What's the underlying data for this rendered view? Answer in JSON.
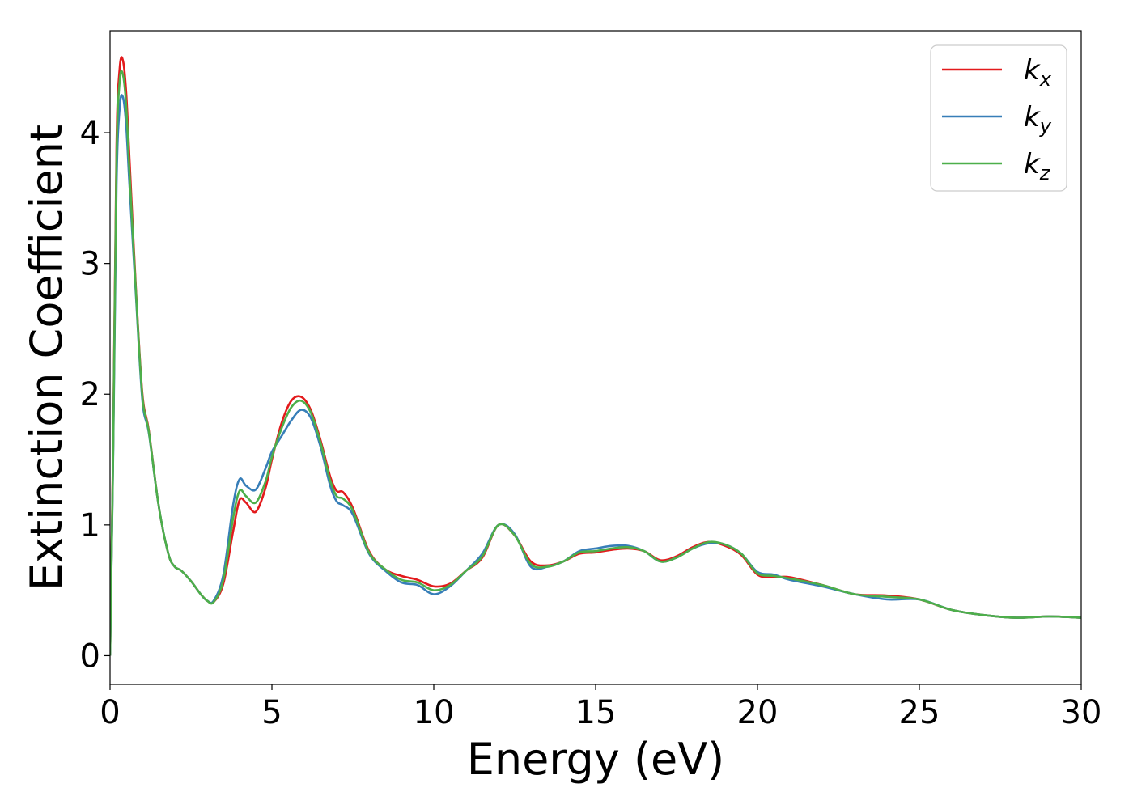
{
  "chart_data": {
    "type": "line",
    "xlabel": "Energy (eV)",
    "ylabel": "Extinction Coefficient",
    "xlim": [
      0,
      30
    ],
    "ylim": [
      -0.22,
      4.78
    ],
    "xticks": [
      0,
      5,
      10,
      15,
      20,
      25,
      30
    ],
    "yticks": [
      0,
      1,
      2,
      3,
      4
    ],
    "grid": false,
    "legend_placement": "top-right",
    "x": [
      0,
      0.1,
      0.2,
      0.3,
      0.4,
      0.5,
      0.6,
      0.8,
      1.0,
      1.2,
      1.5,
      1.8,
      2.0,
      2.2,
      2.5,
      2.8,
      3.0,
      3.2,
      3.5,
      3.8,
      4.0,
      4.2,
      4.5,
      4.8,
      5.0,
      5.3,
      5.6,
      5.9,
      6.2,
      6.5,
      6.8,
      7.0,
      7.2,
      7.5,
      8.0,
      8.5,
      9.0,
      9.5,
      10.0,
      10.5,
      11.0,
      11.5,
      12.0,
      12.5,
      13.0,
      13.5,
      14.0,
      14.5,
      15.0,
      15.5,
      16.0,
      16.5,
      17.0,
      17.5,
      18.0,
      18.5,
      19.0,
      19.5,
      20.0,
      20.5,
      21.0,
      22.0,
      23.0,
      24.0,
      25.0,
      26.0,
      27.0,
      28.0,
      29.0,
      30.0
    ],
    "series": [
      {
        "name": "k",
        "name_sub": "x",
        "color": "#e31a1c",
        "values": [
          0,
          1.7,
          3.9,
          4.5,
          4.55,
          4.3,
          3.8,
          2.8,
          2.0,
          1.72,
          1.15,
          0.78,
          0.68,
          0.65,
          0.57,
          0.47,
          0.42,
          0.41,
          0.55,
          0.95,
          1.19,
          1.17,
          1.1,
          1.28,
          1.5,
          1.78,
          1.95,
          1.98,
          1.88,
          1.65,
          1.37,
          1.26,
          1.25,
          1.13,
          0.8,
          0.66,
          0.61,
          0.58,
          0.53,
          0.55,
          0.65,
          0.75,
          1.0,
          0.92,
          0.72,
          0.69,
          0.72,
          0.78,
          0.79,
          0.81,
          0.82,
          0.8,
          0.73,
          0.76,
          0.83,
          0.87,
          0.84,
          0.77,
          0.62,
          0.6,
          0.6,
          0.54,
          0.47,
          0.46,
          0.43,
          0.35,
          0.31,
          0.29,
          0.3,
          0.29
        ]
      },
      {
        "name": "k",
        "name_sub": "y",
        "color": "#377eb8",
        "values": [
          0,
          1.6,
          3.6,
          4.2,
          4.27,
          4.05,
          3.6,
          2.75,
          1.95,
          1.7,
          1.15,
          0.78,
          0.68,
          0.65,
          0.57,
          0.47,
          0.42,
          0.42,
          0.62,
          1.15,
          1.35,
          1.3,
          1.27,
          1.43,
          1.56,
          1.68,
          1.8,
          1.88,
          1.82,
          1.6,
          1.3,
          1.18,
          1.15,
          1.08,
          0.78,
          0.65,
          0.56,
          0.54,
          0.47,
          0.53,
          0.65,
          0.78,
          1.0,
          0.93,
          0.68,
          0.68,
          0.72,
          0.8,
          0.82,
          0.84,
          0.84,
          0.8,
          0.72,
          0.75,
          0.82,
          0.86,
          0.85,
          0.78,
          0.64,
          0.62,
          0.58,
          0.53,
          0.47,
          0.43,
          0.43,
          0.35,
          0.31,
          0.29,
          0.3,
          0.29
        ]
      },
      {
        "name": "k",
        "name_sub": "z",
        "color": "#4daf4a",
        "values": [
          0,
          1.65,
          3.8,
          4.4,
          4.44,
          4.2,
          3.7,
          2.78,
          1.98,
          1.71,
          1.15,
          0.78,
          0.68,
          0.65,
          0.57,
          0.47,
          0.42,
          0.41,
          0.58,
          1.05,
          1.26,
          1.22,
          1.17,
          1.33,
          1.52,
          1.74,
          1.9,
          1.95,
          1.86,
          1.63,
          1.34,
          1.22,
          1.2,
          1.11,
          0.79,
          0.66,
          0.58,
          0.56,
          0.5,
          0.54,
          0.65,
          0.76,
          1.0,
          0.92,
          0.7,
          0.68,
          0.72,
          0.79,
          0.8,
          0.82,
          0.83,
          0.8,
          0.72,
          0.75,
          0.82,
          0.87,
          0.85,
          0.78,
          0.63,
          0.61,
          0.59,
          0.54,
          0.47,
          0.45,
          0.43,
          0.35,
          0.31,
          0.29,
          0.3,
          0.29
        ]
      }
    ]
  }
}
